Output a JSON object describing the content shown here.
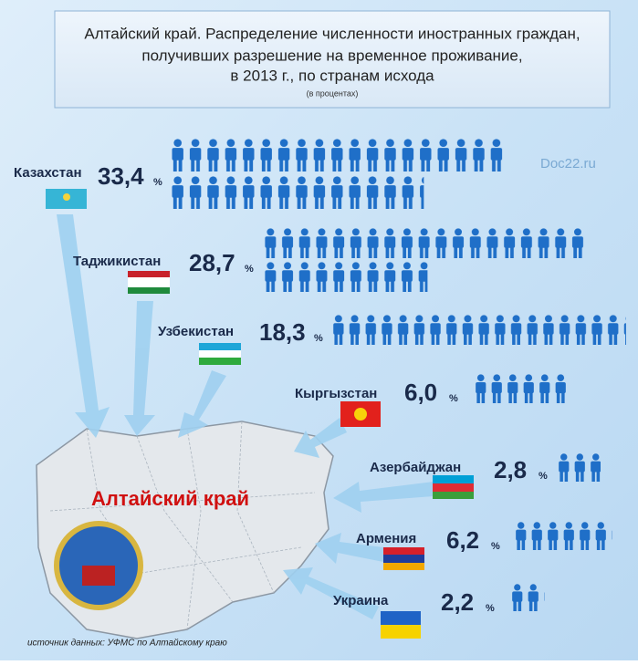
{
  "chart_data": {
    "type": "pictogram",
    "title_lines": [
      "Алтайский край.  Распределение численности иностранных граждан,",
      "получивших разрешение на временное проживание,",
      "в 2013 г., по странам исхода"
    ],
    "subtitle": "(в процентах)",
    "watermark": "Doc22.ru",
    "region_label": "Алтайский край",
    "source": "источник данных:  УФМС по Алтайскому краю",
    "unit": "%",
    "color": "#1f6fc8",
    "categories": [
      "Казахстан",
      "Таджикистан",
      "Узбекистан",
      "Кыргызстан",
      "Азербайджан",
      "Армения",
      "Украина"
    ],
    "values": [
      33.4,
      28.7,
      18.3,
      6.0,
      2.8,
      6.2,
      2.2
    ],
    "value_labels": [
      "33,4",
      "28,7",
      "18,3",
      "6,0",
      "2,8",
      "6,2",
      "2,2"
    ]
  }
}
